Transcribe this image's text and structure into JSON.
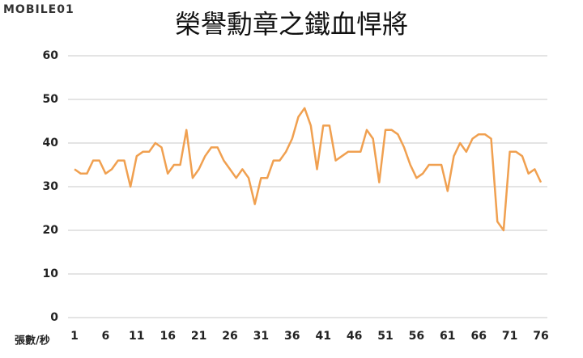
{
  "logo": "MOBILE01",
  "chart_data": {
    "type": "line",
    "title": "榮譽勳章之鐵血悍將",
    "x_label": "張數/秒",
    "x": [
      1,
      2,
      3,
      4,
      5,
      6,
      7,
      8,
      9,
      10,
      11,
      12,
      13,
      14,
      15,
      16,
      17,
      18,
      19,
      20,
      21,
      22,
      23,
      24,
      25,
      26,
      27,
      28,
      29,
      30,
      31,
      32,
      33,
      34,
      35,
      36,
      37,
      38,
      39,
      40,
      41,
      42,
      43,
      44,
      45,
      46,
      47,
      48,
      49,
      50,
      51,
      52,
      53,
      54,
      55,
      56,
      57,
      58,
      59,
      60,
      61,
      62,
      63,
      64,
      65,
      66,
      67,
      68,
      69,
      70,
      71,
      72,
      73,
      74,
      75,
      76
    ],
    "values": [
      34,
      33,
      33,
      36,
      36,
      33,
      34,
      36,
      36,
      30,
      37,
      38,
      38,
      40,
      39,
      33,
      35,
      35,
      43,
      32,
      34,
      37,
      39,
      39,
      36,
      34,
      32,
      34,
      32,
      26,
      32,
      32,
      36,
      36,
      38,
      41,
      46,
      48,
      44,
      34,
      44,
      44,
      36,
      37,
      38,
      38,
      38,
      43,
      41,
      31,
      43,
      43,
      42,
      39,
      35,
      32,
      33,
      35,
      35,
      35,
      29,
      37,
      40,
      38,
      41,
      42,
      42,
      41,
      22,
      20,
      38,
      38,
      37,
      33,
      34,
      31
    ],
    "color": "#f0a050",
    "xlim": [
      1,
      76
    ],
    "xticks": [
      1,
      6,
      11,
      16,
      21,
      26,
      31,
      36,
      41,
      46,
      51,
      56,
      61,
      66,
      71,
      76
    ],
    "ylim": [
      0,
      60
    ],
    "yticks": [
      0,
      10,
      20,
      30,
      40,
      50,
      60
    ],
    "grid": true
  }
}
